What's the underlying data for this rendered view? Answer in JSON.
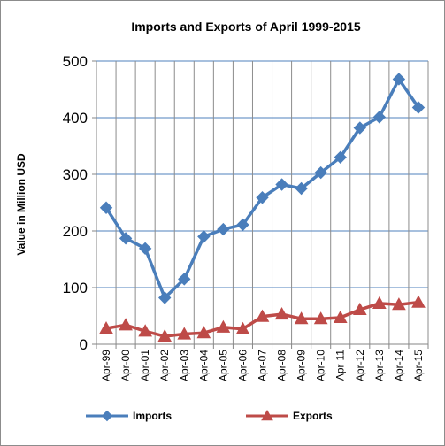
{
  "chart_data": {
    "type": "line",
    "title": "Imports and Exports of April 1999-2015",
    "xlabel": "",
    "ylabel": "Value in Million USD",
    "ylim": [
      0,
      500
    ],
    "yticks": [
      "0",
      "100",
      "200",
      "300",
      "400",
      "500"
    ],
    "grid": true,
    "legend": "bottom",
    "categories": [
      "Apr-99",
      "Apr-00",
      "Apr-01",
      "Apr-02",
      "Apr-03",
      "Apr-04",
      "Apr-05",
      "Apr-06",
      "Apr-07",
      "Apr-08",
      "Apr-09",
      "Apr-10",
      "Apr-11",
      "Apr-12",
      "Apr-13",
      "Apr-14",
      "Apr-15"
    ],
    "series": [
      {
        "name": "Imports",
        "color": "#4a7ebb",
        "marker": "diamond",
        "values": [
          241,
          187,
          169,
          82,
          115,
          190,
          203,
          211,
          259,
          282,
          275,
          303,
          330,
          382,
          401,
          468,
          418
        ]
      },
      {
        "name": "Exports",
        "color": "#be4b48",
        "marker": "triangle",
        "values": [
          28,
          34,
          23,
          14,
          18,
          20,
          30,
          27,
          49,
          53,
          45,
          45,
          47,
          61,
          72,
          70,
          74
        ]
      }
    ]
  }
}
